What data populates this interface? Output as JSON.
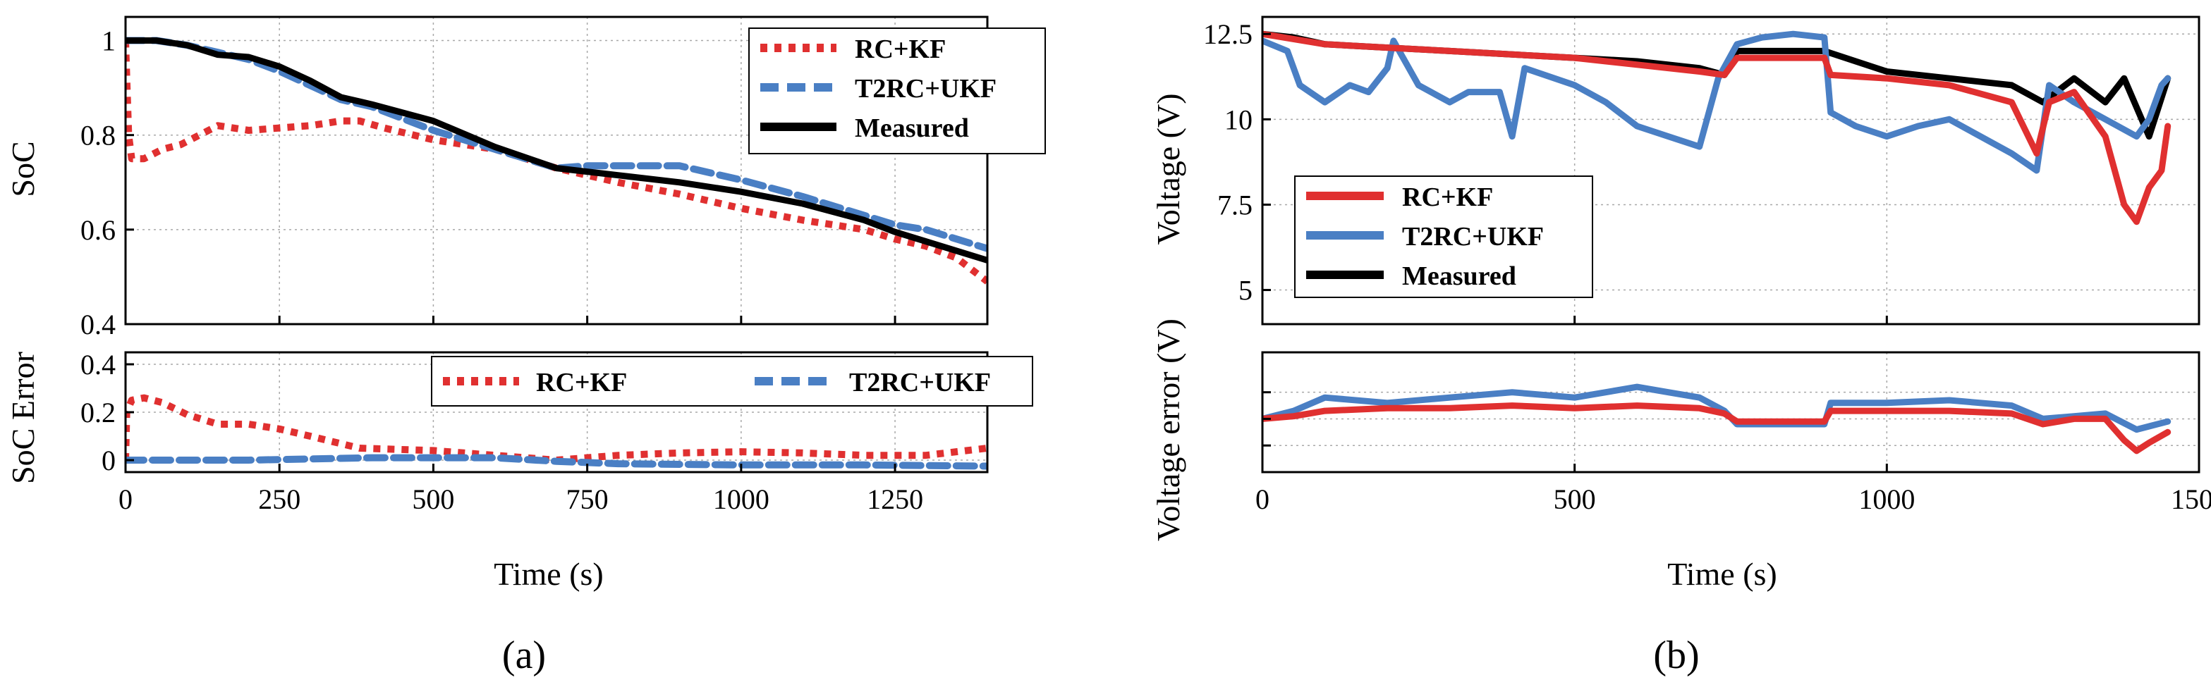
{
  "colors": {
    "rc_kf": "#e03030",
    "t2rc_ukf": "#4a7fc4",
    "measured": "#000000"
  },
  "chart_data": [
    {
      "id": "a_top",
      "type": "line",
      "xlabel": "",
      "ylabel": "SoC",
      "xlim": [
        0,
        1400
      ],
      "ylim": [
        0.4,
        1.05
      ],
      "xticks": [
        0,
        250,
        500,
        750,
        1000,
        1250
      ],
      "xtick_labels": [
        "",
        "",
        "",
        "",
        "",
        ""
      ],
      "yticks": [
        0.4,
        0.6,
        0.8,
        1.0
      ],
      "ytick_labels": [
        "0.4",
        "0.6",
        "0.8",
        "1"
      ],
      "grid": true,
      "legend_position": "top-right",
      "series": [
        {
          "name": "RC+KF",
          "style": "dotted",
          "color": "#e03030",
          "x": [
            0,
            2,
            5,
            10,
            30,
            60,
            90,
            120,
            150,
            200,
            250,
            300,
            350,
            380,
            420,
            500,
            600,
            700,
            800,
            900,
            1000,
            1100,
            1200,
            1250,
            1300,
            1350,
            1400
          ],
          "y": [
            1.0,
            0.92,
            0.8,
            0.75,
            0.75,
            0.77,
            0.78,
            0.8,
            0.82,
            0.81,
            0.815,
            0.82,
            0.83,
            0.83,
            0.815,
            0.79,
            0.77,
            0.73,
            0.7,
            0.675,
            0.645,
            0.62,
            0.6,
            0.58,
            0.565,
            0.54,
            0.49
          ]
        },
        {
          "name": "T2RC+UKF",
          "style": "dashed",
          "color": "#4a7fc4",
          "x": [
            0,
            50,
            100,
            150,
            200,
            250,
            300,
            350,
            400,
            500,
            600,
            700,
            750,
            800,
            900,
            1000,
            1100,
            1200,
            1250,
            1300,
            1400
          ],
          "y": [
            1.0,
            1.0,
            0.99,
            0.975,
            0.96,
            0.935,
            0.905,
            0.875,
            0.86,
            0.81,
            0.77,
            0.73,
            0.735,
            0.735,
            0.735,
            0.705,
            0.67,
            0.63,
            0.61,
            0.6,
            0.56
          ]
        },
        {
          "name": "Measured",
          "style": "solid",
          "color": "#000000",
          "x": [
            0,
            50,
            100,
            150,
            200,
            250,
            300,
            350,
            400,
            500,
            600,
            700,
            800,
            900,
            1000,
            1100,
            1200,
            1250,
            1300,
            1400
          ],
          "y": [
            1.0,
            1.0,
            0.99,
            0.97,
            0.965,
            0.945,
            0.915,
            0.88,
            0.865,
            0.83,
            0.775,
            0.73,
            0.715,
            0.7,
            0.68,
            0.655,
            0.62,
            0.595,
            0.575,
            0.535
          ]
        }
      ]
    },
    {
      "id": "a_bottom",
      "type": "line",
      "xlabel": "Time (s)",
      "ylabel": "SoC Error",
      "xlim": [
        0,
        1400
      ],
      "ylim": [
        -0.05,
        0.45
      ],
      "xticks": [
        0,
        250,
        500,
        750,
        1000,
        1250
      ],
      "xtick_labels": [
        "0",
        "250",
        "500",
        "750",
        "1000",
        "1250"
      ],
      "yticks": [
        0,
        0.2,
        0.4
      ],
      "ytick_labels": [
        "0",
        "0.2",
        "0.4"
      ],
      "grid": true,
      "legend_position": "top (horizontal)",
      "series": [
        {
          "name": "RC+KF",
          "style": "dotted",
          "color": "#e03030",
          "x": [
            0,
            2,
            10,
            30,
            60,
            100,
            150,
            200,
            250,
            300,
            380,
            500,
            600,
            700,
            800,
            900,
            1000,
            1100,
            1200,
            1300,
            1400
          ],
          "y": [
            0.0,
            0.2,
            0.25,
            0.26,
            0.24,
            0.19,
            0.15,
            0.15,
            0.13,
            0.1,
            0.05,
            0.04,
            0.02,
            0.0,
            0.02,
            0.03,
            0.035,
            0.03,
            0.02,
            0.02,
            0.05
          ]
        },
        {
          "name": "T2RC+UKF",
          "style": "dashed",
          "color": "#4a7fc4",
          "x": [
            0,
            200,
            400,
            600,
            700,
            800,
            1000,
            1200,
            1400
          ],
          "y": [
            0.0,
            0.0,
            0.01,
            0.01,
            -0.005,
            -0.015,
            -0.02,
            -0.02,
            -0.025
          ]
        }
      ]
    },
    {
      "id": "b_top",
      "type": "line",
      "xlabel": "",
      "ylabel": "Voltage (V)",
      "xlim": [
        0,
        1500
      ],
      "ylim": [
        4,
        13
      ],
      "xticks": [
        0,
        500,
        1000,
        1500
      ],
      "xtick_labels": [
        "",
        "",
        "",
        ""
      ],
      "yticks": [
        5,
        7.5,
        10,
        12.5
      ],
      "ytick_labels": [
        "5",
        "7.5",
        "10",
        "12.5"
      ],
      "grid": true,
      "legend_position": "lower-left",
      "series": [
        {
          "name": "Measured",
          "style": "solid",
          "color": "#000000",
          "x": [
            0,
            50,
            100,
            200,
            300,
            400,
            500,
            600,
            700,
            740,
            760,
            900,
            1000,
            1100,
            1200,
            1250,
            1300,
            1350,
            1380,
            1420,
            1450
          ],
          "y": [
            12.5,
            12.4,
            12.2,
            12.1,
            12.0,
            11.9,
            11.8,
            11.7,
            11.5,
            11.3,
            12.0,
            12.0,
            11.4,
            11.2,
            11.0,
            10.5,
            11.2,
            10.5,
            11.2,
            9.5,
            11.2
          ]
        },
        {
          "name": "T2RC+UKF",
          "style": "solid",
          "color": "#4a7fc4",
          "x": [
            0,
            40,
            60,
            100,
            140,
            170,
            200,
            210,
            250,
            300,
            330,
            380,
            400,
            420,
            500,
            550,
            600,
            650,
            700,
            730,
            760,
            800,
            850,
            900,
            910,
            950,
            1000,
            1050,
            1100,
            1150,
            1200,
            1240,
            1260,
            1300,
            1350,
            1400,
            1420,
            1440,
            1450
          ],
          "y": [
            12.3,
            12.0,
            11.0,
            10.5,
            11.0,
            10.8,
            11.5,
            12.3,
            11.0,
            10.5,
            10.8,
            10.8,
            9.5,
            11.5,
            11.0,
            10.5,
            9.8,
            9.5,
            9.2,
            11.2,
            12.2,
            12.4,
            12.5,
            12.4,
            10.2,
            9.8,
            9.5,
            9.8,
            10.0,
            9.5,
            9.0,
            8.5,
            11.0,
            10.5,
            10.0,
            9.5,
            10.0,
            11.0,
            11.2
          ]
        },
        {
          "name": "RC+KF",
          "style": "solid",
          "color": "#e03030",
          "x": [
            0,
            100,
            200,
            300,
            400,
            500,
            600,
            700,
            740,
            760,
            900,
            910,
            1000,
            1100,
            1200,
            1240,
            1260,
            1300,
            1350,
            1380,
            1400,
            1420,
            1440,
            1450
          ],
          "y": [
            12.5,
            12.2,
            12.1,
            12.0,
            11.9,
            11.8,
            11.6,
            11.4,
            11.3,
            11.8,
            11.8,
            11.3,
            11.2,
            11.0,
            10.5,
            9.0,
            10.5,
            10.8,
            9.5,
            7.5,
            7.0,
            8.0,
            8.5,
            9.8
          ]
        }
      ]
    },
    {
      "id": "b_bottom",
      "type": "line",
      "xlabel": "Time (s)",
      "ylabel": "Voltage error (V)",
      "xlim": [
        0,
        1500
      ],
      "ylim": [
        -2,
        2.5
      ],
      "xticks": [
        0,
        500,
        1000,
        1500
      ],
      "xtick_labels": [
        "0",
        "500",
        "1000",
        "1500"
      ],
      "yticks": [
        -1,
        0,
        1
      ],
      "ytick_labels": [
        "",
        "",
        ""
      ],
      "grid": true,
      "series": [
        {
          "name": "T2RC+UKF",
          "style": "solid",
          "color": "#4a7fc4",
          "x": [
            0,
            50,
            100,
            200,
            300,
            400,
            500,
            600,
            650,
            700,
            740,
            760,
            900,
            910,
            1000,
            1100,
            1200,
            1250,
            1300,
            1350,
            1400,
            1450
          ],
          "y": [
            0.0,
            0.3,
            0.8,
            0.6,
            0.8,
            1.0,
            0.8,
            1.2,
            1.0,
            0.8,
            0.3,
            -0.2,
            -0.2,
            0.6,
            0.6,
            0.7,
            0.5,
            0.0,
            0.1,
            0.2,
            -0.4,
            -0.1
          ]
        },
        {
          "name": "RC+KF",
          "style": "solid",
          "color": "#e03030",
          "x": [
            0,
            50,
            100,
            200,
            300,
            400,
            500,
            600,
            700,
            740,
            760,
            900,
            910,
            1000,
            1100,
            1200,
            1250,
            1300,
            1350,
            1380,
            1400,
            1420,
            1450
          ],
          "y": [
            0.0,
            0.1,
            0.3,
            0.4,
            0.4,
            0.5,
            0.4,
            0.5,
            0.4,
            0.2,
            -0.1,
            -0.1,
            0.3,
            0.3,
            0.3,
            0.2,
            -0.2,
            0.0,
            0.0,
            -0.8,
            -1.2,
            -0.9,
            -0.5
          ]
        }
      ]
    }
  ],
  "legends": {
    "a_top": [
      "RC+KF",
      "T2RC+UKF",
      "Measured"
    ],
    "a_bottom": [
      "RC+KF",
      "T2RC+UKF"
    ],
    "b_top": [
      "RC+KF",
      "T2RC+UKF",
      "Measured"
    ]
  },
  "panel_labels": {
    "a": "(a)",
    "b": "(b)"
  }
}
